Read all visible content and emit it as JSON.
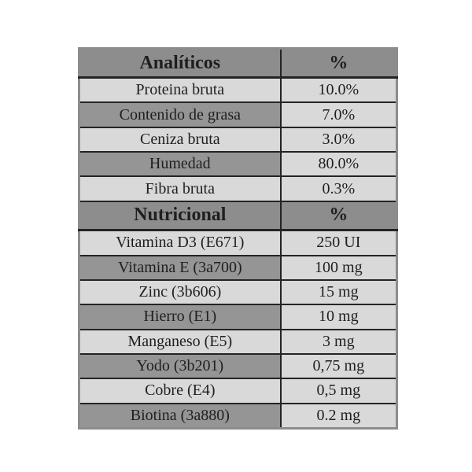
{
  "page": {
    "background": "#ffffff"
  },
  "table": {
    "colors": {
      "header_bg": "#8d8d8d",
      "shaded_label_cell_bg": "#959595",
      "light_cell_bg": "#d9d9d9",
      "inner_border": "#242424",
      "outer_border": "#8c8c8c",
      "text": "#1f1f1f",
      "selection_mark_green": "#2f7e52"
    },
    "sections": [
      {
        "header": {
          "label": "Analíticos",
          "unit": "%"
        },
        "rows": [
          {
            "label": "Proteina bruta",
            "value": "10.0%",
            "shaded": false
          },
          {
            "label": "Contenido de grasa",
            "value": "7.0%",
            "shaded": true
          },
          {
            "label": "Ceniza bruta",
            "value": "3.0%",
            "shaded": false
          },
          {
            "label": "Humedad",
            "value": "80.0%",
            "shaded": true
          },
          {
            "label": "Fibra bruta",
            "value": "0.3%",
            "shaded": false
          }
        ]
      },
      {
        "header": {
          "label": "Nutricional",
          "unit": "%"
        },
        "rows": [
          {
            "label": "Vitamina D3 (E671)",
            "value": "250 UI",
            "shaded": false
          },
          {
            "label": "Vitamina E (3a700)",
            "value": "100 mg",
            "shaded": true
          },
          {
            "label": "Zinc (3b606)",
            "value": "15 mg",
            "shaded": false
          },
          {
            "label": "Hierro (E1)",
            "value": "10 mg",
            "shaded": true,
            "marked": true
          },
          {
            "label": "Manganeso (E5)",
            "value": "3 mg",
            "shaded": false
          },
          {
            "label": "Yodo (3b201)",
            "value": "0,75 mg",
            "shaded": true
          },
          {
            "label": "Cobre (E4)",
            "value": "0,5 mg",
            "shaded": false
          },
          {
            "label": "Biotina (3a880)",
            "value": "0.2 mg",
            "shaded": true
          }
        ]
      }
    ]
  }
}
